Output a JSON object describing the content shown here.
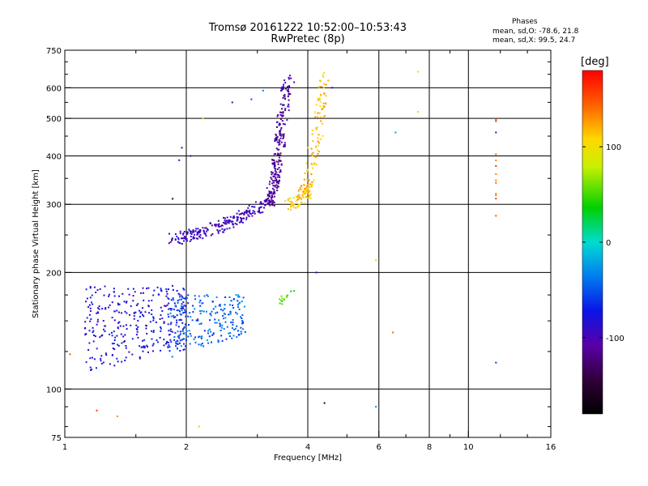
{
  "header": {
    "title_line1": "Tromsø 20161222 10:52:00–10:53:43",
    "title_line2": "RwPretec (8p)",
    "stats_heading": "Phases",
    "stats_o": "mean, sd,O: -78.6, 21.8",
    "stats_x": "mean, sd,X:  99.5, 24.7"
  },
  "colorbar": {
    "label": "[deg]",
    "ticks": [
      {
        "value": 100,
        "label": "100"
      },
      {
        "value": 0,
        "label": "0"
      },
      {
        "value": -100,
        "label": "-100"
      }
    ],
    "range": [
      -180,
      180
    ]
  },
  "chart_data": {
    "type": "scatter",
    "xlabel": "Frequency [MHz]",
    "ylabel": "Stationary phase Virtual Height [km]",
    "xscale": "log",
    "yscale": "log",
    "xlim": [
      1,
      16
    ],
    "ylim": [
      75,
      750
    ],
    "x_ticks": [
      {
        "value": 1,
        "label": "1"
      },
      {
        "value": 2,
        "label": "2"
      },
      {
        "value": 4,
        "label": "4"
      },
      {
        "value": 6,
        "label": "6"
      },
      {
        "value": 8,
        "label": "8"
      },
      {
        "value": 10,
        "label": "10"
      },
      {
        "value": 16,
        "label": "16"
      }
    ],
    "x_grid": [
      2,
      4,
      6,
      8,
      10
    ],
    "y_ticks": [
      {
        "value": 75,
        "label": "75"
      },
      {
        "value": 100,
        "label": "100"
      },
      {
        "value": 200,
        "label": "200"
      },
      {
        "value": 300,
        "label": "300"
      },
      {
        "value": 400,
        "label": "400"
      },
      {
        "value": 500,
        "label": "500"
      },
      {
        "value": 600,
        "label": "600"
      },
      {
        "value": 750,
        "label": "750"
      }
    ],
    "y_grid": [
      100,
      200,
      300,
      400,
      500,
      600
    ],
    "grid": true,
    "color_by": "phase (deg)",
    "clusters": [
      {
        "kind": "band",
        "x_start": 1.85,
        "x_end": 3.2,
        "y_start": 245,
        "y_end": 305,
        "phase": -95,
        "n": 230
      },
      {
        "kind": "band",
        "x_start": 3.2,
        "x_end": 3.55,
        "y_start": 305,
        "y_end": 640,
        "phase": -110,
        "n": 240
      },
      {
        "kind": "band",
        "x_start": 3.55,
        "x_end": 4.05,
        "y_start": 300,
        "y_end": 330,
        "phase": 110,
        "n": 60
      },
      {
        "kind": "band",
        "x_start": 3.9,
        "x_end": 4.4,
        "y_start": 320,
        "y_end": 650,
        "phase": 115,
        "n": 120
      },
      {
        "kind": "blob",
        "x_start": 1.12,
        "x_end": 2.0,
        "y_start": 110,
        "y_end": 185,
        "phase": -80,
        "n": 320
      },
      {
        "kind": "blob",
        "x_start": 1.8,
        "x_end": 2.8,
        "y_start": 120,
        "y_end": 175,
        "phase": -45,
        "n": 230
      },
      {
        "kind": "blob",
        "x_start": 3.4,
        "x_end": 3.7,
        "y_start": 160,
        "y_end": 175,
        "phase": 50,
        "n": 16
      },
      {
        "kind": "column",
        "x_start": 11.7,
        "x_end": 11.7,
        "y_start": 280,
        "y_end": 550,
        "phase": 150,
        "n": 12
      }
    ],
    "isolated_points": [
      {
        "x": 1.03,
        "y": 123,
        "phase": 150
      },
      {
        "x": 1.2,
        "y": 88,
        "phase": 160
      },
      {
        "x": 1.35,
        "y": 85,
        "phase": 130
      },
      {
        "x": 2.15,
        "y": 80,
        "phase": 115
      },
      {
        "x": 4.4,
        "y": 92,
        "phase": -160
      },
      {
        "x": 5.9,
        "y": 90,
        "phase": -30
      },
      {
        "x": 6.5,
        "y": 140,
        "phase": 140
      },
      {
        "x": 6.6,
        "y": 460,
        "phase": -20
      },
      {
        "x": 7.5,
        "y": 660,
        "phase": 110
      },
      {
        "x": 7.5,
        "y": 520,
        "phase": 110
      },
      {
        "x": 5.9,
        "y": 215,
        "phase": 110
      },
      {
        "x": 11.7,
        "y": 117,
        "phase": -60
      },
      {
        "x": 11.7,
        "y": 460,
        "phase": -110
      },
      {
        "x": 2.2,
        "y": 500,
        "phase": 110
      },
      {
        "x": 1.95,
        "y": 420,
        "phase": -120
      },
      {
        "x": 1.92,
        "y": 390,
        "phase": -110
      },
      {
        "x": 2.05,
        "y": 400,
        "phase": -100
      },
      {
        "x": 1.85,
        "y": 310,
        "phase": -150
      },
      {
        "x": 2.6,
        "y": 550,
        "phase": -110
      },
      {
        "x": 2.9,
        "y": 560,
        "phase": -50
      },
      {
        "x": 3.1,
        "y": 590,
        "phase": -40
      },
      {
        "x": 3.7,
        "y": 620,
        "phase": -110
      },
      {
        "x": 4.6,
        "y": 600,
        "phase": -100
      },
      {
        "x": 4.2,
        "y": 200,
        "phase": -80
      },
      {
        "x": 4.0,
        "y": 420,
        "phase": 90
      }
    ]
  }
}
